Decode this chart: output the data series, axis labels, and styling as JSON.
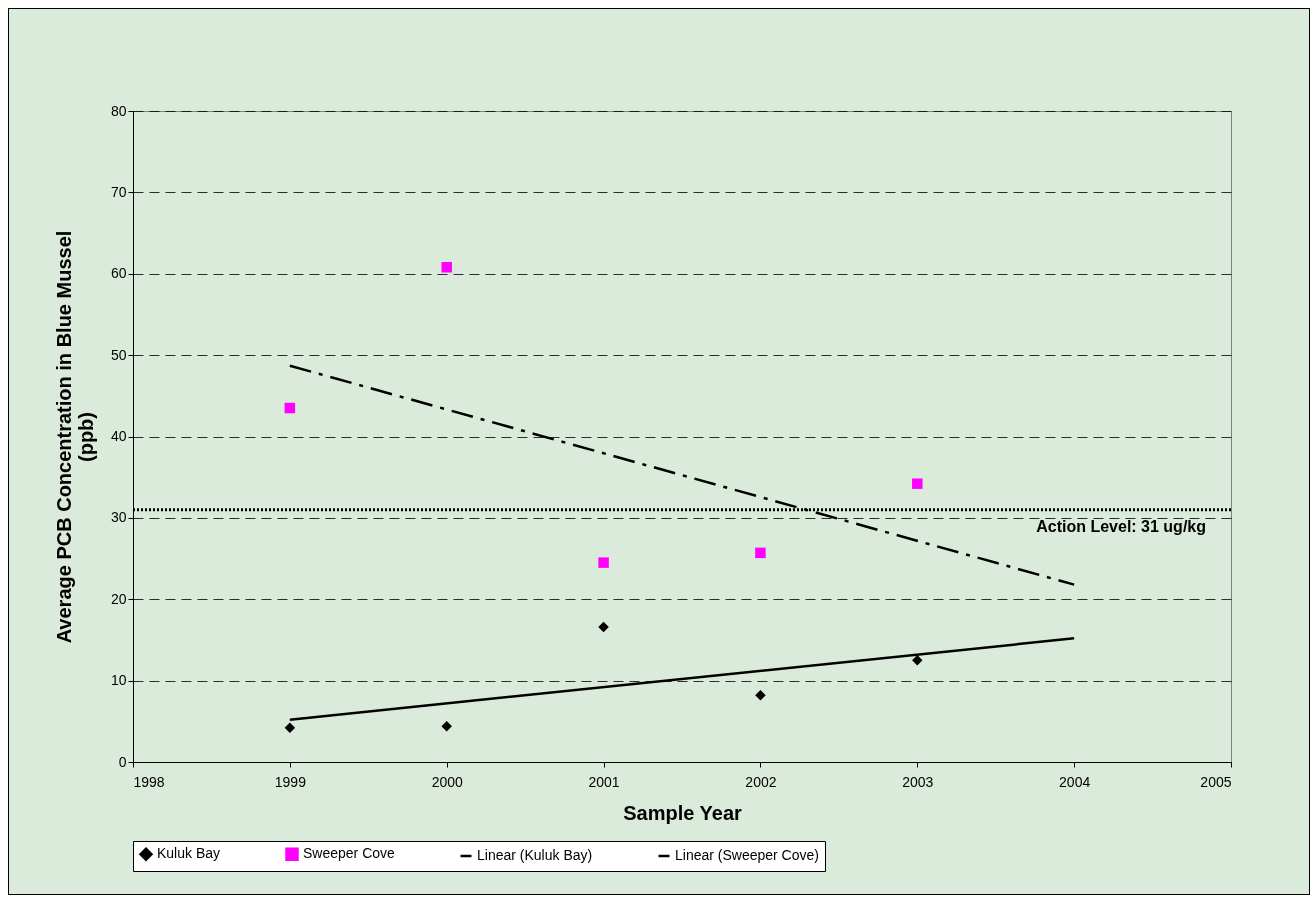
{
  "chart_data": {
    "type": "scatter",
    "xlabel": "Sample Year",
    "ylabel": "Average PCB  Concentration in Blue Mussel\n(ppb)",
    "xlim": [
      1998,
      2005
    ],
    "xticks": [
      1998,
      1999,
      2000,
      2001,
      2002,
      2003,
      2004,
      2005
    ],
    "ylim": [
      0,
      80
    ],
    "yticks": [
      0,
      10,
      20,
      30,
      40,
      50,
      60,
      70,
      80
    ],
    "grid": "y",
    "legend": "bottom",
    "series": [
      {
        "name": "Kuluk Bay",
        "marker": "diamond",
        "color": "#000000",
        "x": [
          1999,
          2000,
          2001,
          2002,
          2003
        ],
        "values": [
          4.2,
          4.4,
          16.6,
          8.2,
          12.5
        ]
      },
      {
        "name": "Sweeper Cove",
        "marker": "square",
        "color": "#ff00ff",
        "x": [
          1999,
          2000,
          2001,
          2002,
          2003
        ],
        "values": [
          43.5,
          60.8,
          24.5,
          25.7,
          34.2
        ]
      },
      {
        "name": "Linear (Kuluk Bay)",
        "type": "line",
        "line_style": "solid",
        "color": "#000000",
        "x": [
          1999,
          2004
        ],
        "values": [
          5.2,
          15.2
        ]
      },
      {
        "name": "Linear (Sweeper Cove)",
        "type": "line",
        "line_style": "dashdot",
        "color": "#000000",
        "x": [
          1999,
          2004
        ],
        "values": [
          48.7,
          21.8
        ]
      }
    ],
    "ref_lines": [
      {
        "axis": "y",
        "value": 31,
        "label": "Action Level: 31 ug/kg",
        "color": "#000000",
        "line_style": "dotted"
      }
    ]
  }
}
